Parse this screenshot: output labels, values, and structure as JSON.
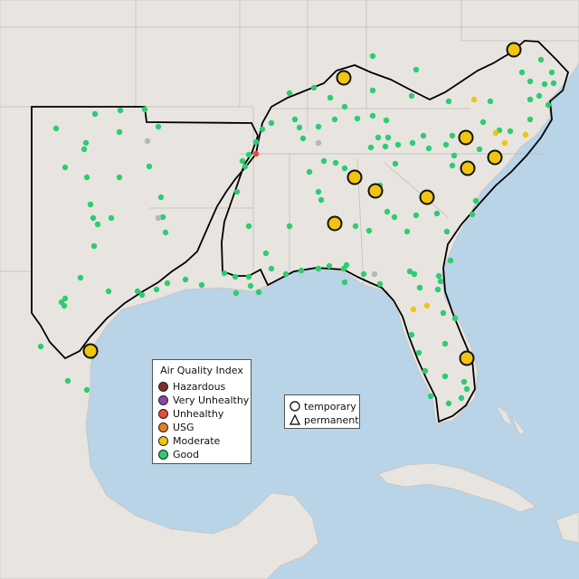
{
  "legend": {
    "title": "Air Quality Index",
    "categories": [
      {
        "label": "Hazardous",
        "color": "#7e2f2a"
      },
      {
        "label": "Very Unhealthy",
        "color": "#8e44ad"
      },
      {
        "label": "Unhealthy",
        "color": "#e74c3c"
      },
      {
        "label": "USG",
        "color": "#e67e22"
      },
      {
        "label": "Moderate",
        "color": "#f1c40f"
      },
      {
        "label": "Good",
        "color": "#2ecc71"
      }
    ]
  },
  "monitor_types": {
    "temporary": "temporary",
    "permanent": "permanent"
  },
  "colors": {
    "ocean": "#b9d3e7",
    "land": "#e8e5e1",
    "region_outline": "#000000",
    "inactive_monitor": "#b7b7b7"
  },
  "icons": [
    "circle-icon",
    "triangle-icon"
  ]
}
